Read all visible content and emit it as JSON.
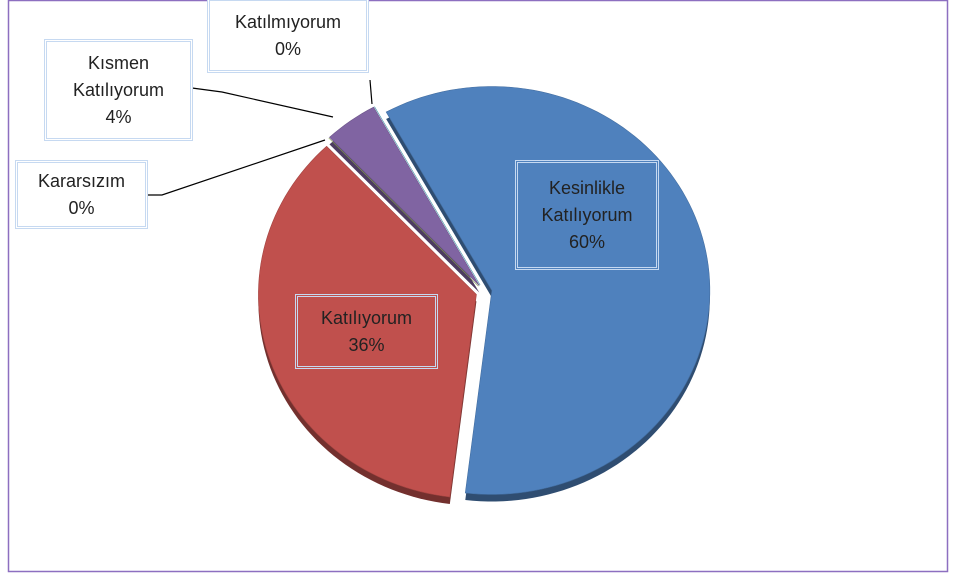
{
  "chart_data": {
    "type": "pie",
    "categories": [
      "Kesinlikle Katılıyorum",
      "Katılıyorum",
      "Kararsızım",
      "Kısmen Katılıyorum",
      "Katılmıyorum"
    ],
    "values": [
      60,
      36,
      0,
      4,
      0
    ],
    "value_labels": [
      "60%",
      "36%",
      "0%",
      "4%",
      "0%"
    ],
    "colors": [
      "#4f81bd",
      "#c0504d",
      "#9bbb59",
      "#8064a2",
      "#4bacc6"
    ]
  }
}
